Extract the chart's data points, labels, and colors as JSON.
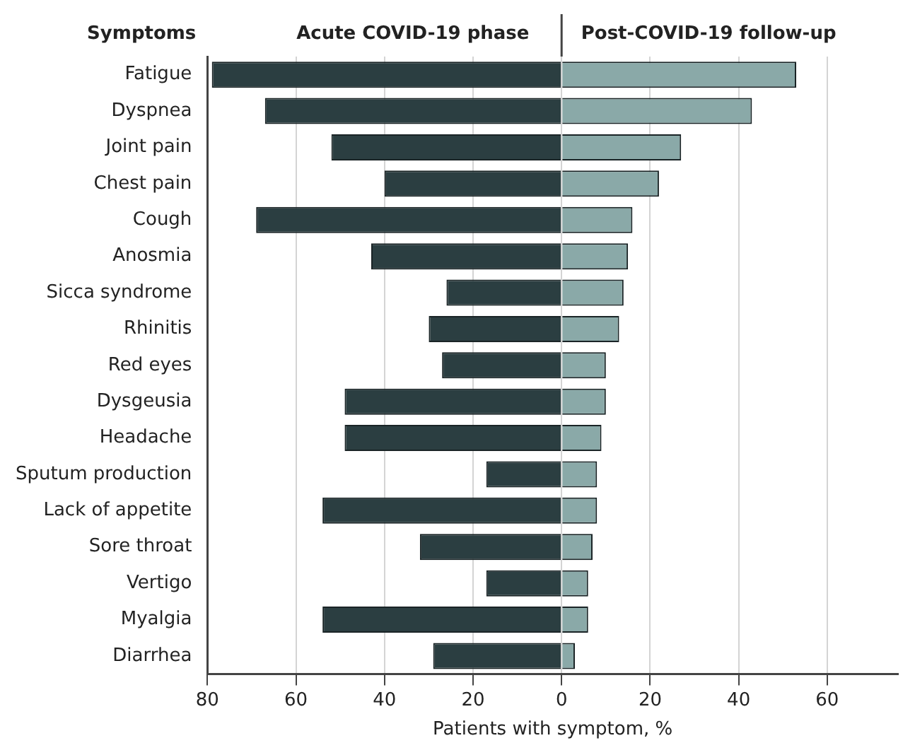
{
  "chart_data": {
    "type": "bar",
    "orientation": "horizontal",
    "stacked": true,
    "ylabel": "Symptoms",
    "xlabel": "Patients with symptom, %",
    "categories": [
      "Fatigue",
      "Dyspnea",
      "Joint pain",
      "Chest pain",
      "Cough",
      "Anosmia",
      "Sicca syndrome",
      "Rhinitis",
      "Red eyes",
      "Dysgeusia",
      "Headache",
      "Sputum production",
      "Lack of appetite",
      "Sore throat",
      "Vertigo",
      "Myalgia",
      "Diarrhea"
    ],
    "series": [
      {
        "name": "Acute COVID-19 phase",
        "color": "#2b3e41",
        "values": [
          -79,
          -67,
          -52,
          -40,
          -69,
          -43,
          -26,
          -30,
          -27,
          -49,
          -49,
          -17,
          -54,
          -32,
          -17,
          -54,
          -29
        ]
      },
      {
        "name": "Post-COVID-19 follow-up",
        "color": "#8aa9a8",
        "values": [
          53,
          43,
          27,
          22,
          16,
          15,
          14,
          13,
          10,
          10,
          9,
          8,
          8,
          7,
          6,
          6,
          3
        ]
      }
    ],
    "xlim": [
      -80,
      76
    ],
    "xticks": [
      {
        "value": -80,
        "label": "80"
      },
      {
        "value": -60,
        "label": "60"
      },
      {
        "value": -40,
        "label": "40"
      },
      {
        "value": -20,
        "label": "20"
      },
      0,
      20,
      40,
      60
    ],
    "grid": "x",
    "legend": "top"
  }
}
